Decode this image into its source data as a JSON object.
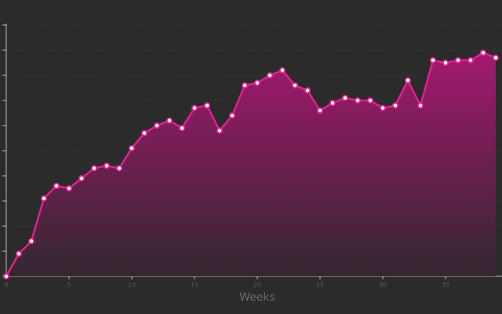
{
  "chart_data": {
    "type": "area",
    "x_label": "Weeks",
    "x": [
      0,
      1,
      2,
      3,
      4,
      5,
      6,
      7,
      8,
      9,
      10,
      11,
      12,
      13,
      14,
      15,
      16,
      17,
      18,
      19,
      20,
      21,
      22,
      23,
      24,
      25,
      26,
      27,
      28,
      29,
      30,
      31,
      32,
      33,
      34,
      35,
      36,
      37,
      38,
      39
    ],
    "values": [
      0,
      0.9,
      1.4,
      3.1,
      3.6,
      3.5,
      3.9,
      4.3,
      4.4,
      4.3,
      5.1,
      5.7,
      6.0,
      6.2,
      5.9,
      6.7,
      6.8,
      5.8,
      6.4,
      7.6,
      7.7,
      8.0,
      8.2,
      7.6,
      7.4,
      6.6,
      6.9,
      7.1,
      7.0,
      7.0,
      6.7,
      6.8,
      7.8,
      6.8,
      8.6,
      8.5,
      8.6,
      8.6,
      8.9,
      8.7
    ],
    "color": "#e0208f",
    "xlim": [
      0,
      39.5
    ],
    "xticks": [
      0,
      5,
      10,
      15,
      20,
      25,
      30,
      35
    ],
    "ylim": [
      0,
      10
    ],
    "yticks": [
      0,
      1,
      2,
      3,
      4,
      5,
      6,
      7,
      8,
      9,
      10
    ],
    "grid": true
  }
}
